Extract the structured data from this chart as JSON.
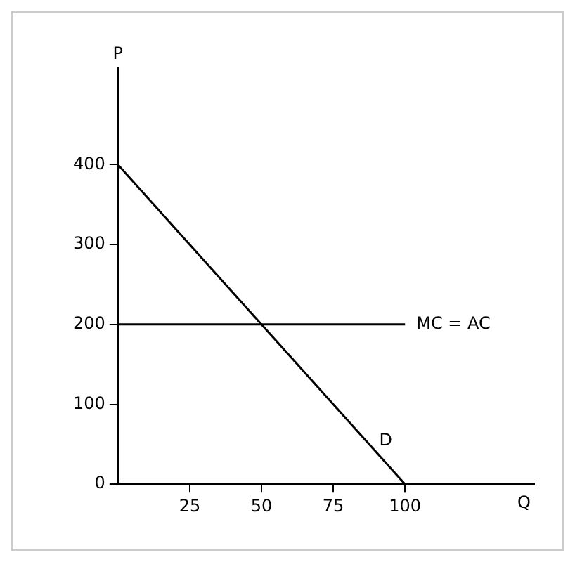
{
  "chart_data": {
    "type": "line",
    "xlabel": "Q",
    "ylabel": "P",
    "xlim": [
      0,
      145
    ],
    "ylim": [
      0,
      520
    ],
    "xticks": [
      25,
      50,
      75,
      100
    ],
    "yticks": [
      0,
      100,
      200,
      300,
      400
    ],
    "grid": false,
    "legend": false,
    "marker": "none",
    "line_style": "solid",
    "x": [
      0,
      100
    ],
    "series": [
      {
        "name": "D",
        "color": "#000000",
        "values": [
          400,
          0
        ]
      },
      {
        "name": "MC = AC",
        "color": "#000000",
        "values": [
          200,
          200
        ]
      }
    ]
  }
}
